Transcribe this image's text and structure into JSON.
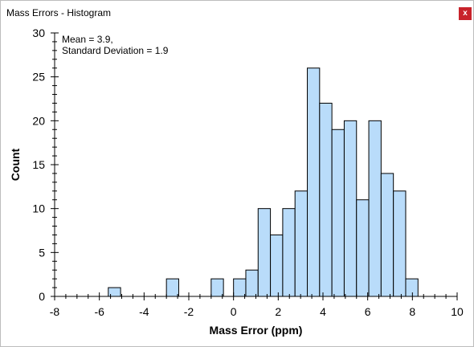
{
  "window": {
    "title": "Mass Errors - Histogram",
    "close_label": "x"
  },
  "chart_data": {
    "type": "bar",
    "title": "",
    "xlabel": "Mass Error (ppm)",
    "ylabel": "Count",
    "xlim": [
      -8,
      10
    ],
    "ylim": [
      0,
      30
    ],
    "xticks": [
      -8,
      -6,
      -4,
      -2,
      0,
      2,
      4,
      6,
      8,
      10
    ],
    "yticks": [
      0,
      5,
      10,
      15,
      20,
      25,
      30
    ],
    "grid": false,
    "annotation": [
      "Mean = 3.9,",
      "Standard Deviation = 1.9"
    ],
    "bar_color": "#b9dcfa",
    "bin_width": 0.55,
    "bins": [
      {
        "x0": -5.6,
        "count": 1
      },
      {
        "x0": -3.0,
        "count": 2
      },
      {
        "x0": -1.0,
        "count": 2
      },
      {
        "x0": 0.0,
        "count": 2
      },
      {
        "x0": 0.55,
        "count": 3
      },
      {
        "x0": 1.1,
        "count": 10
      },
      {
        "x0": 1.65,
        "count": 7
      },
      {
        "x0": 2.2,
        "count": 10
      },
      {
        "x0": 2.75,
        "count": 12
      },
      {
        "x0": 3.3,
        "count": 26
      },
      {
        "x0": 3.85,
        "count": 22
      },
      {
        "x0": 4.4,
        "count": 19
      },
      {
        "x0": 4.95,
        "count": 20
      },
      {
        "x0": 5.5,
        "count": 11
      },
      {
        "x0": 6.05,
        "count": 20
      },
      {
        "x0": 6.6,
        "count": 14
      },
      {
        "x0": 7.15,
        "count": 12
      },
      {
        "x0": 7.7,
        "count": 2
      }
    ]
  }
}
